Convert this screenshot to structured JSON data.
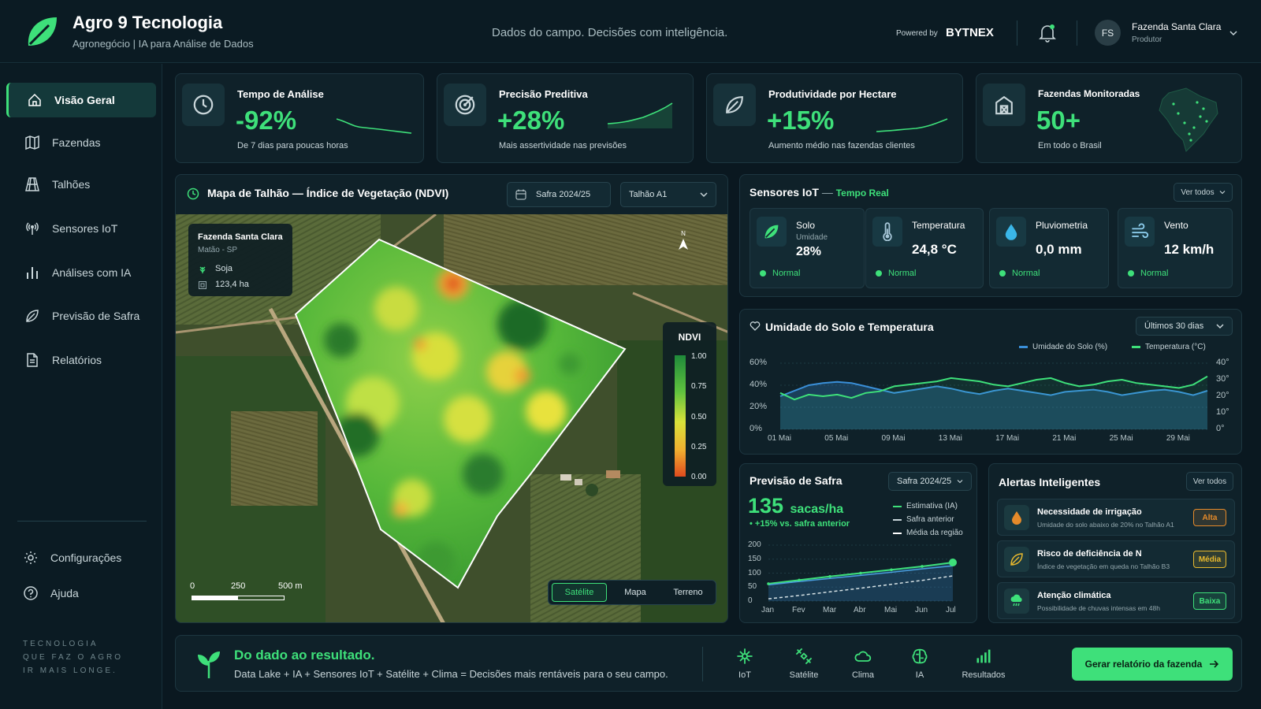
{
  "brand": {
    "title": "Agro 9 Tecnologia",
    "subtitle": "Agronegócio | IA para Análise de Dados"
  },
  "header": {
    "tagline": "Dados do campo. Decisões com inteligência.",
    "powered_by": "Powered by",
    "powered_brand": "BYTNEX",
    "user_initials": "FS",
    "user_name": "Fazenda Santa Clara",
    "user_role": "Produtor"
  },
  "sidebar": {
    "items": [
      {
        "label": "Visão Geral",
        "icon": "home-icon"
      },
      {
        "label": "Fazendas",
        "icon": "map-icon"
      },
      {
        "label": "Talhões",
        "icon": "fields-icon"
      },
      {
        "label": "Sensores IoT",
        "icon": "antenna-icon"
      },
      {
        "label": "Análises com IA",
        "icon": "bar-chart-icon"
      },
      {
        "label": "Previsão de Safra",
        "icon": "leaf-icon"
      },
      {
        "label": "Relatórios",
        "icon": "document-icon"
      }
    ],
    "bottom": [
      {
        "label": "Configurações",
        "icon": "gear-icon"
      },
      {
        "label": "Ajuda",
        "icon": "help-icon"
      }
    ],
    "motto": [
      "TECNOLOGIA",
      "QUE FAZ O AGRO",
      "IR MAIS LONGE."
    ]
  },
  "kpis": [
    {
      "title": "Tempo de Análise",
      "value": "-92%",
      "caption": "De 7 dias para poucas horas",
      "icon": "clock-icon"
    },
    {
      "title": "Precisão Preditiva",
      "value": "+28%",
      "caption": "Mais assertividade nas previsões",
      "icon": "target-icon"
    },
    {
      "title": "Produtividade por Hectare",
      "value": "+15%",
      "caption": "Aumento médio nas fazendas clientes",
      "icon": "leaf-icon"
    },
    {
      "title": "Fazendas Monitoradas",
      "value": "50+",
      "caption": "Em todo o Brasil",
      "icon": "barn-icon"
    }
  ],
  "map_panel": {
    "title": "Mapa de Talhão — Índice de Vegetação (NDVI)",
    "season": "Safra 2024/25",
    "plot": "Talhão A1",
    "farm_name": "Fazenda Santa Clara",
    "location": "Matão - SP",
    "crop": "Soja",
    "area": "123,4 ha",
    "north": "N",
    "legend_title": "NDVI",
    "legend_ticks": [
      "1.00",
      "0.75",
      "0.50",
      "0.25",
      "0.00"
    ],
    "scale": [
      "0",
      "250",
      "500 m"
    ],
    "view_modes": [
      "Satélite",
      "Mapa",
      "Terreno"
    ],
    "active_view": "Satélite"
  },
  "sensors": {
    "title": "Sensores IoT",
    "subtitle": "Tempo Real",
    "view_all": "Ver todos",
    "items": [
      {
        "name": "Solo",
        "sub": "Umidade",
        "value": "28%",
        "status": "Normal",
        "icon": "soil-leaf-icon"
      },
      {
        "name": "Temperatura",
        "sub": "",
        "value": "24,8 °C",
        "status": "Normal",
        "icon": "thermometer-icon"
      },
      {
        "name": "Pluviometria",
        "sub": "",
        "value": "0,0 mm",
        "status": "Normal",
        "icon": "drop-icon"
      },
      {
        "name": "Vento",
        "sub": "",
        "value": "12 km/h",
        "status": "Normal",
        "icon": "wind-icon"
      }
    ]
  },
  "soil_chart": {
    "title": "Umidade do Solo e Temperatura",
    "range": "Últimos 30 dias",
    "chart_data": {
      "type": "area",
      "title": "Umidade do Solo e Temperatura",
      "x": [
        "01 Mai",
        "02 Mai",
        "03 Mai",
        "04 Mai",
        "05 Mai",
        "06 Mai",
        "07 Mai",
        "08 Mai",
        "09 Mai",
        "10 Mai",
        "11 Mai",
        "12 Mai",
        "13 Mai",
        "14 Mai",
        "15 Mai",
        "16 Mai",
        "17 Mai",
        "18 Mai",
        "19 Mai",
        "20 Mai",
        "21 Mai",
        "22 Mai",
        "23 Mai",
        "24 Mai",
        "25 Mai",
        "26 Mai",
        "27 Mai",
        "28 Mai",
        "29 Mai",
        "30 Mai",
        "31 Mai"
      ],
      "x_ticks": [
        "01 Mai",
        "05 Mai",
        "09 Mai",
        "13 Mai",
        "17 Mai",
        "21 Mai",
        "25 Mai",
        "29 Mai"
      ],
      "series": [
        {
          "name": "Umidade do Solo (%)",
          "axis": "left",
          "color": "#3a8fd8",
          "values": [
            30,
            35,
            40,
            42,
            43,
            42,
            39,
            36,
            33,
            35,
            37,
            39,
            37,
            34,
            32,
            35,
            37,
            35,
            33,
            31,
            34,
            35,
            36,
            34,
            31,
            33,
            35,
            36,
            34,
            31,
            35
          ]
        },
        {
          "name": "Temperatura (°C)",
          "axis": "right",
          "color": "#3ee07a",
          "values": [
            22,
            18,
            21,
            20,
            21,
            19,
            22,
            23,
            26,
            27,
            28,
            29,
            31,
            30,
            29,
            27,
            26,
            28,
            30,
            31,
            28,
            26,
            27,
            29,
            30,
            28,
            27,
            26,
            25,
            27,
            32
          ]
        }
      ],
      "yleft": {
        "ticks": [
          "0%",
          "20%",
          "40%",
          "60%"
        ],
        "lim": [
          0,
          60
        ]
      },
      "yright": {
        "ticks": [
          "0°",
          "10°",
          "20°",
          "30°",
          "40°"
        ],
        "lim": [
          0,
          40
        ]
      }
    }
  },
  "forecast": {
    "title": "Previsão de Safra",
    "season": "Safra 2024/25",
    "value": "135",
    "unit": "sacas/ha",
    "delta": "+15% vs. safra anterior",
    "legend": [
      "Estimativa (IA)",
      "Safra anterior",
      "Média da região"
    ],
    "chart_data": {
      "type": "line",
      "categories": [
        "Jan",
        "Fev",
        "Mar",
        "Abr",
        "Mai",
        "Jun",
        "Jul"
      ],
      "series": [
        {
          "name": "Estimativa (IA)",
          "values": [
            62,
            75,
            88,
            100,
            112,
            124,
            138
          ]
        },
        {
          "name": "Safra anterior",
          "values": [
            58,
            70,
            81,
            92,
            103,
            115,
            126
          ]
        },
        {
          "name": "Média da região",
          "values": [
            8,
            20,
            33,
            46,
            60,
            74,
            90
          ]
        }
      ],
      "yticks": [
        "0",
        "50",
        "100",
        "150",
        "200"
      ],
      "ylim": [
        0,
        200
      ]
    }
  },
  "alerts": {
    "title": "Alertas Inteligentes",
    "view_all": "Ver todos",
    "items": [
      {
        "title": "Necessidade de irrigação",
        "desc": "Umidade do solo abaixo de 20% no Talhão A1",
        "level": "Alta",
        "color": "#e58a2a",
        "icon": "drop-icon"
      },
      {
        "title": "Risco de deficiência de N",
        "desc": "Índice de vegetação em queda no Talhão B3",
        "level": "Média",
        "color": "#e8b92e",
        "icon": "leaf-icon"
      },
      {
        "title": "Atenção climática",
        "desc": "Possibilidade de chuvas intensas em 48h",
        "level": "Baixa",
        "color": "#3ee07a",
        "icon": "rain-cloud-icon"
      }
    ]
  },
  "footer": {
    "headline": "Do dado ao resultado.",
    "description": "Data Lake + IA + Sensores IoT + Satélite + Clima = Decisões mais rentáveis para o seu campo.",
    "features": [
      {
        "label": "IoT",
        "icon": "iot-icon"
      },
      {
        "label": "Satélite",
        "icon": "satellite-icon"
      },
      {
        "label": "Clima",
        "icon": "cloud-icon"
      },
      {
        "label": "IA",
        "icon": "brain-icon"
      },
      {
        "label": "Resultados",
        "icon": "results-icon"
      }
    ],
    "cta": "Gerar relatório da fazenda"
  },
  "colors": {
    "accent": "#3ee07a",
    "background": "#0a1820",
    "panel": "#0f2129",
    "humidity": "#3a8fd8"
  }
}
